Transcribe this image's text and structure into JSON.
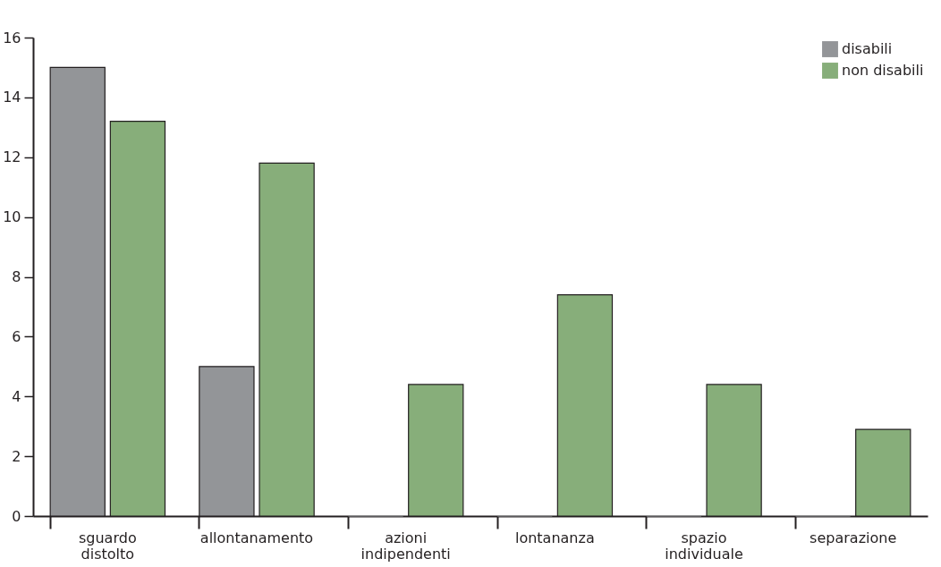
{
  "chart_data": {
    "type": "bar",
    "categories": [
      "sguardo distolto",
      "allontanamento",
      "azioni indipendenti",
      "lontananza",
      "spazio individuale",
      "separazione"
    ],
    "series": [
      {
        "name": "disabili",
        "color": "#939598",
        "values": [
          15,
          5,
          0,
          0,
          0,
          0
        ]
      },
      {
        "name": "non disabili",
        "color": "#87ae7a",
        "values": [
          13.2,
          11.8,
          4.4,
          7.4,
          4.4,
          2.9
        ]
      }
    ],
    "ylim": [
      0,
      16
    ],
    "yticks": [
      0,
      2,
      4,
      6,
      8,
      10,
      12,
      14,
      16
    ],
    "grid": false,
    "legend": "top right"
  }
}
